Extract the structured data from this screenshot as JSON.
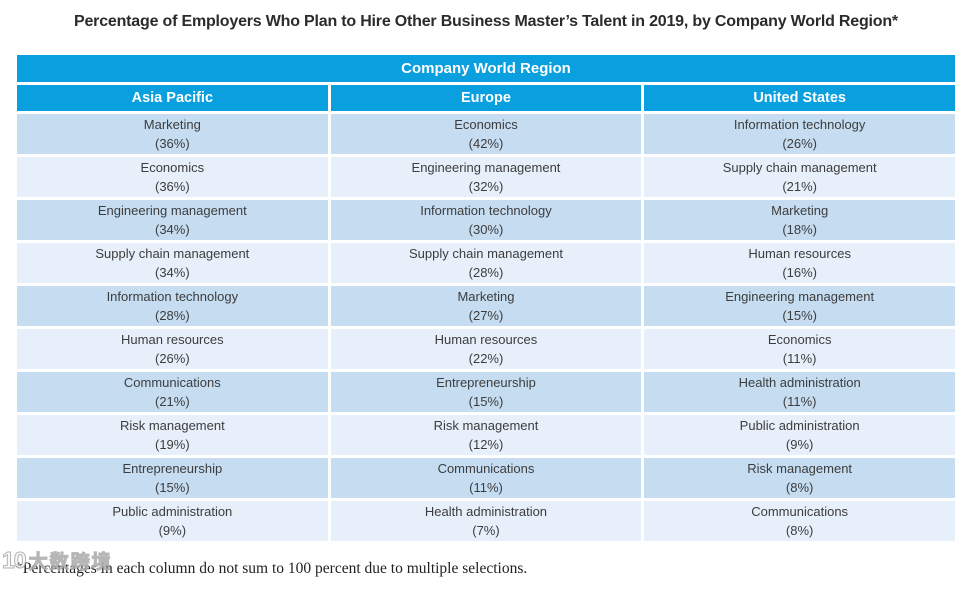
{
  "title": "Percentage of Employers Who Plan to Hire Other Business Master’s Talent in 2019, by Company World Region*",
  "table": {
    "group_header": "Company World Region",
    "columns": [
      "Asia Pacific",
      "Europe",
      "United States"
    ],
    "rows": [
      [
        {
          "name": "Marketing",
          "value": "(36%)"
        },
        {
          "name": "Economics",
          "value": "(42%)"
        },
        {
          "name": "Information technology",
          "value": "(26%)"
        }
      ],
      [
        {
          "name": "Economics",
          "value": "(36%)"
        },
        {
          "name": "Engineering management",
          "value": "(32%)"
        },
        {
          "name": "Supply chain management",
          "value": "(21%)"
        }
      ],
      [
        {
          "name": "Engineering management",
          "value": "(34%)"
        },
        {
          "name": "Information technology",
          "value": "(30%)"
        },
        {
          "name": "Marketing",
          "value": "(18%)"
        }
      ],
      [
        {
          "name": "Supply chain management",
          "value": "(34%)"
        },
        {
          "name": "Supply chain management",
          "value": "(28%)"
        },
        {
          "name": "Human resources",
          "value": "(16%)"
        }
      ],
      [
        {
          "name": "Information technology",
          "value": "(28%)"
        },
        {
          "name": "Marketing",
          "value": "(27%)"
        },
        {
          "name": "Engineering management",
          "value": "(15%)"
        }
      ],
      [
        {
          "name": "Human resources",
          "value": "(26%)"
        },
        {
          "name": "Human resources",
          "value": "(22%)"
        },
        {
          "name": "Economics",
          "value": "(11%)"
        }
      ],
      [
        {
          "name": "Communications",
          "value": "(21%)"
        },
        {
          "name": "Entrepreneurship",
          "value": "(15%)"
        },
        {
          "name": "Health administration",
          "value": "(11%)"
        }
      ],
      [
        {
          "name": "Risk management",
          "value": "(19%)"
        },
        {
          "name": "Risk management",
          "value": "(12%)"
        },
        {
          "name": "Public administration",
          "value": "(9%)"
        }
      ],
      [
        {
          "name": "Entrepreneurship",
          "value": "(15%)"
        },
        {
          "name": "Communications",
          "value": "(11%)"
        },
        {
          "name": "Risk management",
          "value": "(8%)"
        }
      ],
      [
        {
          "name": "Public administration",
          "value": "(9%)"
        },
        {
          "name": "Health administration",
          "value": "(7%)"
        },
        {
          "name": "Communications",
          "value": "(8%)"
        }
      ]
    ]
  },
  "footnote": "*Percentages in each column do not sum to 100 percent due to multiple selections.",
  "watermark": {
    "icon": "10-logo",
    "text": "大数跨境"
  },
  "colors": {
    "header_blue": "#0a9fdf",
    "row_dark": "#c5dcf1",
    "row_light": "#e6effa",
    "title_text": "#2b2b2b",
    "cell_text": "#3d3d3d"
  },
  "chart_data": {
    "type": "table",
    "title": "Percentage of Employers Who Plan to Hire Other Business Master’s Talent in 2019, by Company World Region*",
    "columns": [
      "Asia Pacific",
      "Europe",
      "United States"
    ],
    "value_unit": "percent",
    "series": [
      {
        "name": "Asia Pacific",
        "data": [
          {
            "category": "Marketing",
            "percent": 36
          },
          {
            "category": "Economics",
            "percent": 36
          },
          {
            "category": "Engineering management",
            "percent": 34
          },
          {
            "category": "Supply chain management",
            "percent": 34
          },
          {
            "category": "Information technology",
            "percent": 28
          },
          {
            "category": "Human resources",
            "percent": 26
          },
          {
            "category": "Communications",
            "percent": 21
          },
          {
            "category": "Risk management",
            "percent": 19
          },
          {
            "category": "Entrepreneurship",
            "percent": 15
          },
          {
            "category": "Public administration",
            "percent": 9
          }
        ]
      },
      {
        "name": "Europe",
        "data": [
          {
            "category": "Economics",
            "percent": 42
          },
          {
            "category": "Engineering management",
            "percent": 32
          },
          {
            "category": "Information technology",
            "percent": 30
          },
          {
            "category": "Supply chain management",
            "percent": 28
          },
          {
            "category": "Marketing",
            "percent": 27
          },
          {
            "category": "Human resources",
            "percent": 22
          },
          {
            "category": "Entrepreneurship",
            "percent": 15
          },
          {
            "category": "Risk management",
            "percent": 12
          },
          {
            "category": "Communications",
            "percent": 11
          },
          {
            "category": "Health administration",
            "percent": 7
          }
        ]
      },
      {
        "name": "United States",
        "data": [
          {
            "category": "Information technology",
            "percent": 26
          },
          {
            "category": "Supply chain management",
            "percent": 21
          },
          {
            "category": "Marketing",
            "percent": 18
          },
          {
            "category": "Human resources",
            "percent": 16
          },
          {
            "category": "Engineering management",
            "percent": 15
          },
          {
            "category": "Economics",
            "percent": 11
          },
          {
            "category": "Health administration",
            "percent": 11
          },
          {
            "category": "Public administration",
            "percent": 9
          },
          {
            "category": "Risk management",
            "percent": 8
          },
          {
            "category": "Communications",
            "percent": 8
          }
        ]
      }
    ],
    "footnote": "*Percentages in each column do not sum to 100 percent due to multiple selections."
  }
}
